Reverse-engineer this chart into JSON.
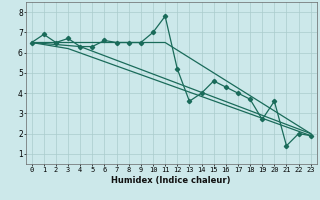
{
  "xlabel": "Humidex (Indice chaleur)",
  "bg_color": "#cce8ea",
  "grid_color": "#aacccc",
  "line_color": "#1a6b5a",
  "xlim": [
    -0.5,
    23.5
  ],
  "ylim": [
    0.5,
    8.5
  ],
  "xticks": [
    0,
    1,
    2,
    3,
    4,
    5,
    6,
    7,
    8,
    9,
    10,
    11,
    12,
    13,
    14,
    15,
    16,
    17,
    18,
    19,
    20,
    21,
    22,
    23
  ],
  "yticks": [
    1,
    2,
    3,
    4,
    5,
    6,
    7,
    8
  ],
  "series1_x": [
    0,
    1,
    2,
    3,
    4,
    5,
    6,
    7,
    8,
    9,
    10,
    11,
    12,
    13,
    14,
    15,
    16,
    17,
    18,
    19,
    20,
    21,
    22,
    23
  ],
  "series1_y": [
    6.5,
    6.9,
    6.5,
    6.7,
    6.3,
    6.3,
    6.6,
    6.5,
    6.5,
    6.5,
    7.0,
    7.8,
    5.2,
    3.6,
    4.0,
    4.6,
    4.3,
    4.0,
    3.7,
    2.7,
    3.6,
    1.4,
    2.0,
    1.9
  ],
  "series2_x": [
    0,
    11,
    23
  ],
  "series2_y": [
    6.5,
    6.5,
    2.0
  ],
  "series3_x": [
    0,
    4,
    23
  ],
  "series3_y": [
    6.5,
    6.3,
    2.0
  ],
  "series4_x": [
    0,
    3,
    23
  ],
  "series4_y": [
    6.5,
    6.2,
    1.9
  ],
  "xlabel_fontsize": 6,
  "tick_fontsize": 5
}
